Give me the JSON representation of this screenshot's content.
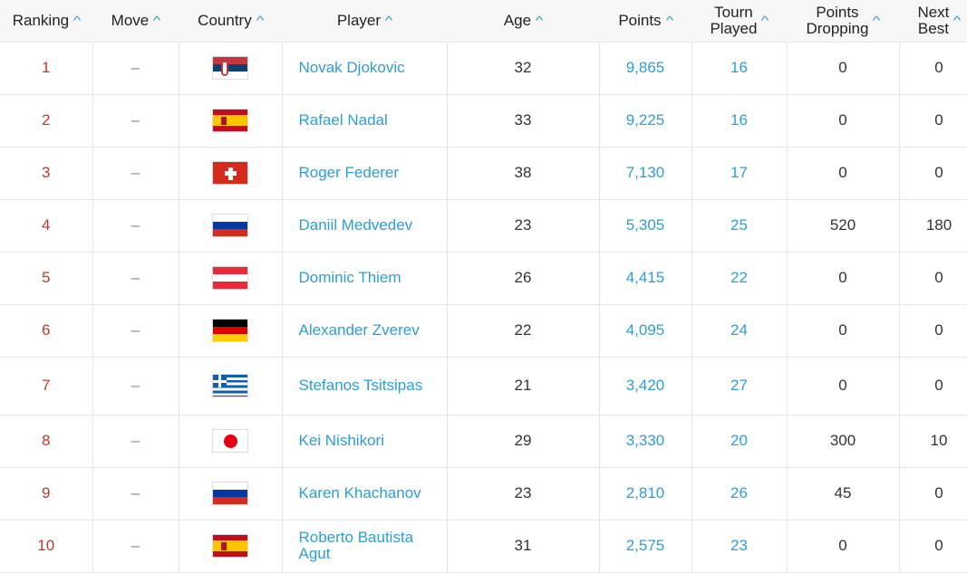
{
  "colors": {
    "rank": "#c0392b",
    "link": "#2a9fd6",
    "sort_arrow": "#2a9fd6"
  },
  "headers": [
    {
      "label": "Ranking",
      "line2": ""
    },
    {
      "label": "Move",
      "line2": ""
    },
    {
      "label": "Country",
      "line2": ""
    },
    {
      "label": "Player",
      "line2": ""
    },
    {
      "label": "Age",
      "line2": ""
    },
    {
      "label": "Points",
      "line2": ""
    },
    {
      "label": "Tourn",
      "line2": "Played"
    },
    {
      "label": "Points",
      "line2": "Dropping"
    },
    {
      "label": "Next",
      "line2": "Best"
    }
  ],
  "sort_icon": "chevron-up-icon",
  "rows": [
    {
      "rank": "1",
      "move": "–",
      "country": "serbia",
      "player": "Novak Djokovic",
      "age": "32",
      "points": "9,865",
      "tourn": "16",
      "dropping": "0",
      "next": "0"
    },
    {
      "rank": "2",
      "move": "–",
      "country": "spain",
      "player": "Rafael Nadal",
      "age": "33",
      "points": "9,225",
      "tourn": "16",
      "dropping": "0",
      "next": "0"
    },
    {
      "rank": "3",
      "move": "–",
      "country": "switzerland",
      "player": "Roger Federer",
      "age": "38",
      "points": "7,130",
      "tourn": "17",
      "dropping": "0",
      "next": "0"
    },
    {
      "rank": "4",
      "move": "–",
      "country": "russia",
      "player": "Daniil Medvedev",
      "age": "23",
      "points": "5,305",
      "tourn": "25",
      "dropping": "520",
      "next": "180"
    },
    {
      "rank": "5",
      "move": "–",
      "country": "austria",
      "player": "Dominic Thiem",
      "age": "26",
      "points": "4,415",
      "tourn": "22",
      "dropping": "0",
      "next": "0"
    },
    {
      "rank": "6",
      "move": "–",
      "country": "germany",
      "player": "Alexander Zverev",
      "age": "22",
      "points": "4,095",
      "tourn": "24",
      "dropping": "0",
      "next": "0"
    },
    {
      "rank": "7",
      "move": "–",
      "country": "greece",
      "player": "Stefanos Tsitsipas",
      "age": "21",
      "points": "3,420",
      "tourn": "27",
      "dropping": "0",
      "next": "0"
    },
    {
      "rank": "8",
      "move": "–",
      "country": "japan",
      "player": "Kei Nishikori",
      "age": "29",
      "points": "3,330",
      "tourn": "20",
      "dropping": "300",
      "next": "10"
    },
    {
      "rank": "9",
      "move": "–",
      "country": "russia",
      "player": "Karen Khachanov",
      "age": "23",
      "points": "2,810",
      "tourn": "26",
      "dropping": "45",
      "next": "0"
    },
    {
      "rank": "10",
      "move": "–",
      "country": "spain",
      "player": "Roberto Bautista Agut",
      "age": "31",
      "points": "2,575",
      "tourn": "23",
      "dropping": "0",
      "next": "0"
    }
  ]
}
